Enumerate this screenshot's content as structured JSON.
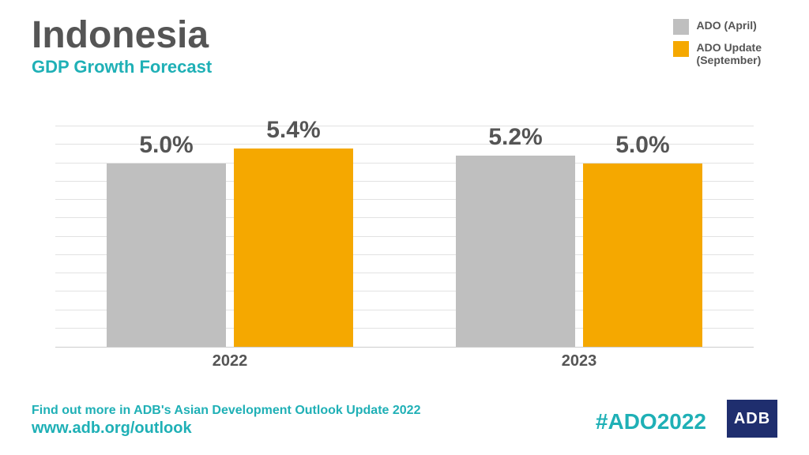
{
  "header": {
    "title": "Indonesia",
    "subtitle": "GDP Growth Forecast",
    "title_color": "#555555",
    "subtitle_color": "#1fb0b6",
    "title_fontsize": 48,
    "subtitle_fontsize": 22
  },
  "legend": {
    "items": [
      {
        "label": "ADO (April)",
        "color": "#bfbfbf"
      },
      {
        "label": "ADO Update\n(September)",
        "color": "#f5a800"
      }
    ],
    "text_color": "#555555",
    "fontsize": 14
  },
  "chart": {
    "type": "bar",
    "ylim": [
      0,
      6
    ],
    "gridline_count": 12,
    "grid_color": "#e2e2e2",
    "background_color": "#ffffff",
    "value_label_color": "#555555",
    "value_label_fontsize": 30,
    "bar_width_pct": 17,
    "categories": [
      "2022",
      "2023"
    ],
    "series": [
      {
        "name": "ADO (April)",
        "color": "#bfbfbf",
        "values": [
          5.0,
          5.2
        ],
        "labels": [
          "5.0%",
          "5.2%"
        ]
      },
      {
        "name": "ADO Update (September)",
        "color": "#f5a800",
        "values": [
          5.4,
          5.0
        ],
        "labels": [
          "5.4%",
          "5.0%"
        ]
      }
    ],
    "xaxis_fontsize": 20,
    "xaxis_color": "#555555"
  },
  "footer": {
    "line1": "Find out more in ADB's Asian Development Outlook Update 2022",
    "line2": "www.adb.org/outlook",
    "color": "#1fb0b6",
    "line1_fontsize": 16,
    "line2_fontsize": 20
  },
  "hashtag": {
    "text": "#ADO2022",
    "color": "#1fb0b6",
    "fontsize": 28
  },
  "logo": {
    "text": "ADB",
    "bg_color": "#1f2e6e",
    "text_color": "#ffffff"
  }
}
